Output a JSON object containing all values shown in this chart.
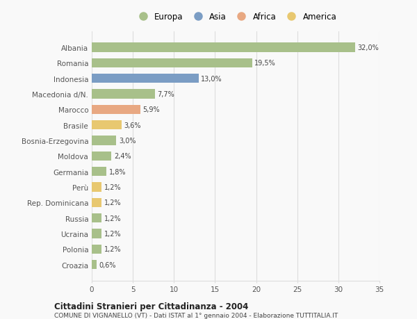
{
  "categories": [
    "Albania",
    "Romania",
    "Indonesia",
    "Macedonia d/N.",
    "Marocco",
    "Brasile",
    "Bosnia-Erzegovina",
    "Moldova",
    "Germania",
    "Perù",
    "Rep. Dominicana",
    "Russia",
    "Ucraina",
    "Polonia",
    "Croazia"
  ],
  "values": [
    32.0,
    19.5,
    13.0,
    7.7,
    5.9,
    3.6,
    3.0,
    2.4,
    1.8,
    1.2,
    1.2,
    1.2,
    1.2,
    1.2,
    0.6
  ],
  "labels": [
    "32,0%",
    "19,5%",
    "13,0%",
    "7,7%",
    "5,9%",
    "3,6%",
    "3,0%",
    "2,4%",
    "1,8%",
    "1,2%",
    "1,2%",
    "1,2%",
    "1,2%",
    "1,2%",
    "0,6%"
  ],
  "continents": [
    "Europa",
    "Europa",
    "Asia",
    "Europa",
    "Africa",
    "America",
    "Europa",
    "Europa",
    "Europa",
    "America",
    "America",
    "Europa",
    "Europa",
    "Europa",
    "Europa"
  ],
  "continent_colors": {
    "Europa": "#a8c08a",
    "Asia": "#7b9dc4",
    "Africa": "#e8a882",
    "America": "#e8c870"
  },
  "legend_order": [
    "Europa",
    "Asia",
    "Africa",
    "America"
  ],
  "xlim": [
    0,
    35
  ],
  "xticks": [
    0,
    5,
    10,
    15,
    20,
    25,
    30,
    35
  ],
  "title": "Cittadini Stranieri per Cittadinanza - 2004",
  "subtitle": "COMUNE DI VIGNANELLO (VT) - Dati ISTAT al 1° gennaio 2004 - Elaborazione TUTTITALIA.IT",
  "background_color": "#f9f9f9",
  "grid_color": "#dddddd",
  "bar_height": 0.6
}
